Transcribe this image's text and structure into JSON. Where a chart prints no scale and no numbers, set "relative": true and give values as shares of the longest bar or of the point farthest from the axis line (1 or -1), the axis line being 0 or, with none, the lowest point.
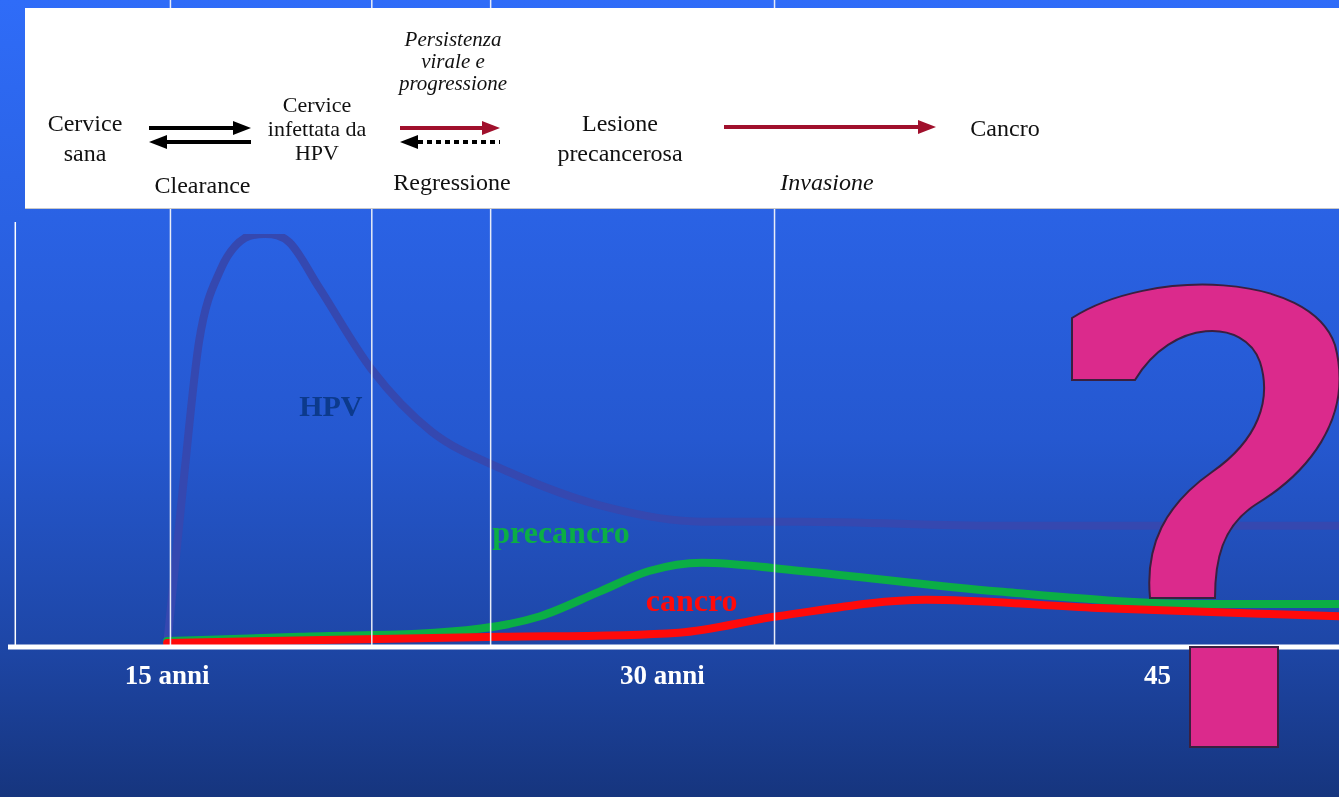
{
  "chart_data": {
    "type": "line",
    "relative": true,
    "xlim": [
      10.3,
      50.5
    ],
    "xticks": [
      {
        "value": 15,
        "label": "15 anni"
      },
      {
        "value": 30,
        "label": "30 anni"
      },
      {
        "value": 45,
        "label": "45"
      }
    ],
    "series": [
      {
        "name": "HPV",
        "color": "#3548b0",
        "x": [
          15,
          15.5,
          15.97,
          16.6,
          17.35,
          17.97,
          18.7,
          19.6,
          21.2,
          23,
          25.1,
          28.1,
          31.2,
          34.2,
          40.2,
          50.5
        ],
        "values": [
          0,
          0.4,
          0.74,
          0.91,
          0.99,
          1,
          0.98,
          0.87,
          0.67,
          0.52,
          0.43,
          0.34,
          0.3,
          0.3,
          0.29,
          0.29
        ]
      },
      {
        "name": "precancro",
        "color": "#0bae45",
        "x": [
          15,
          19,
          24.5,
          26.3,
          28.1,
          29.6,
          31.2,
          34.2,
          40.2,
          46.3,
          50.5
        ],
        "values": [
          0.01,
          0.02,
          0.04,
          0.07,
          0.13,
          0.18,
          0.2,
          0.18,
          0.13,
          0.1,
          0.1
        ]
      },
      {
        "name": "cancro",
        "color": "#ff0a0a",
        "x": [
          15,
          25.1,
          30.5,
          33.5,
          38,
          43.2,
          50.5
        ],
        "values": [
          0.005,
          0.02,
          0.03,
          0.07,
          0.11,
          0.09,
          0.07
        ]
      }
    ],
    "ref_lines": [
      {
        "axis": "x",
        "value": 10.4,
        "color": "#ffffff"
      },
      {
        "axis": "x",
        "value": 15.1,
        "color": "#e8ecf8"
      },
      {
        "axis": "x",
        "value": 21.2,
        "color": "#e8ecf8"
      },
      {
        "axis": "x",
        "value": 24.8,
        "color": "#e8ecf8"
      },
      {
        "axis": "x",
        "value": 33.4,
        "color": "#e8ecf8"
      }
    ],
    "annotations": [
      "Cervice sana",
      "Clearance",
      "Cervice infettata da HPV",
      "Persistenza virale e progressione",
      "Regressione",
      "Lesione precancerosa",
      "Invasione",
      "Cancro"
    ],
    "legend": false,
    "grid": false,
    "marker": "none",
    "line_style": "solid"
  }
}
